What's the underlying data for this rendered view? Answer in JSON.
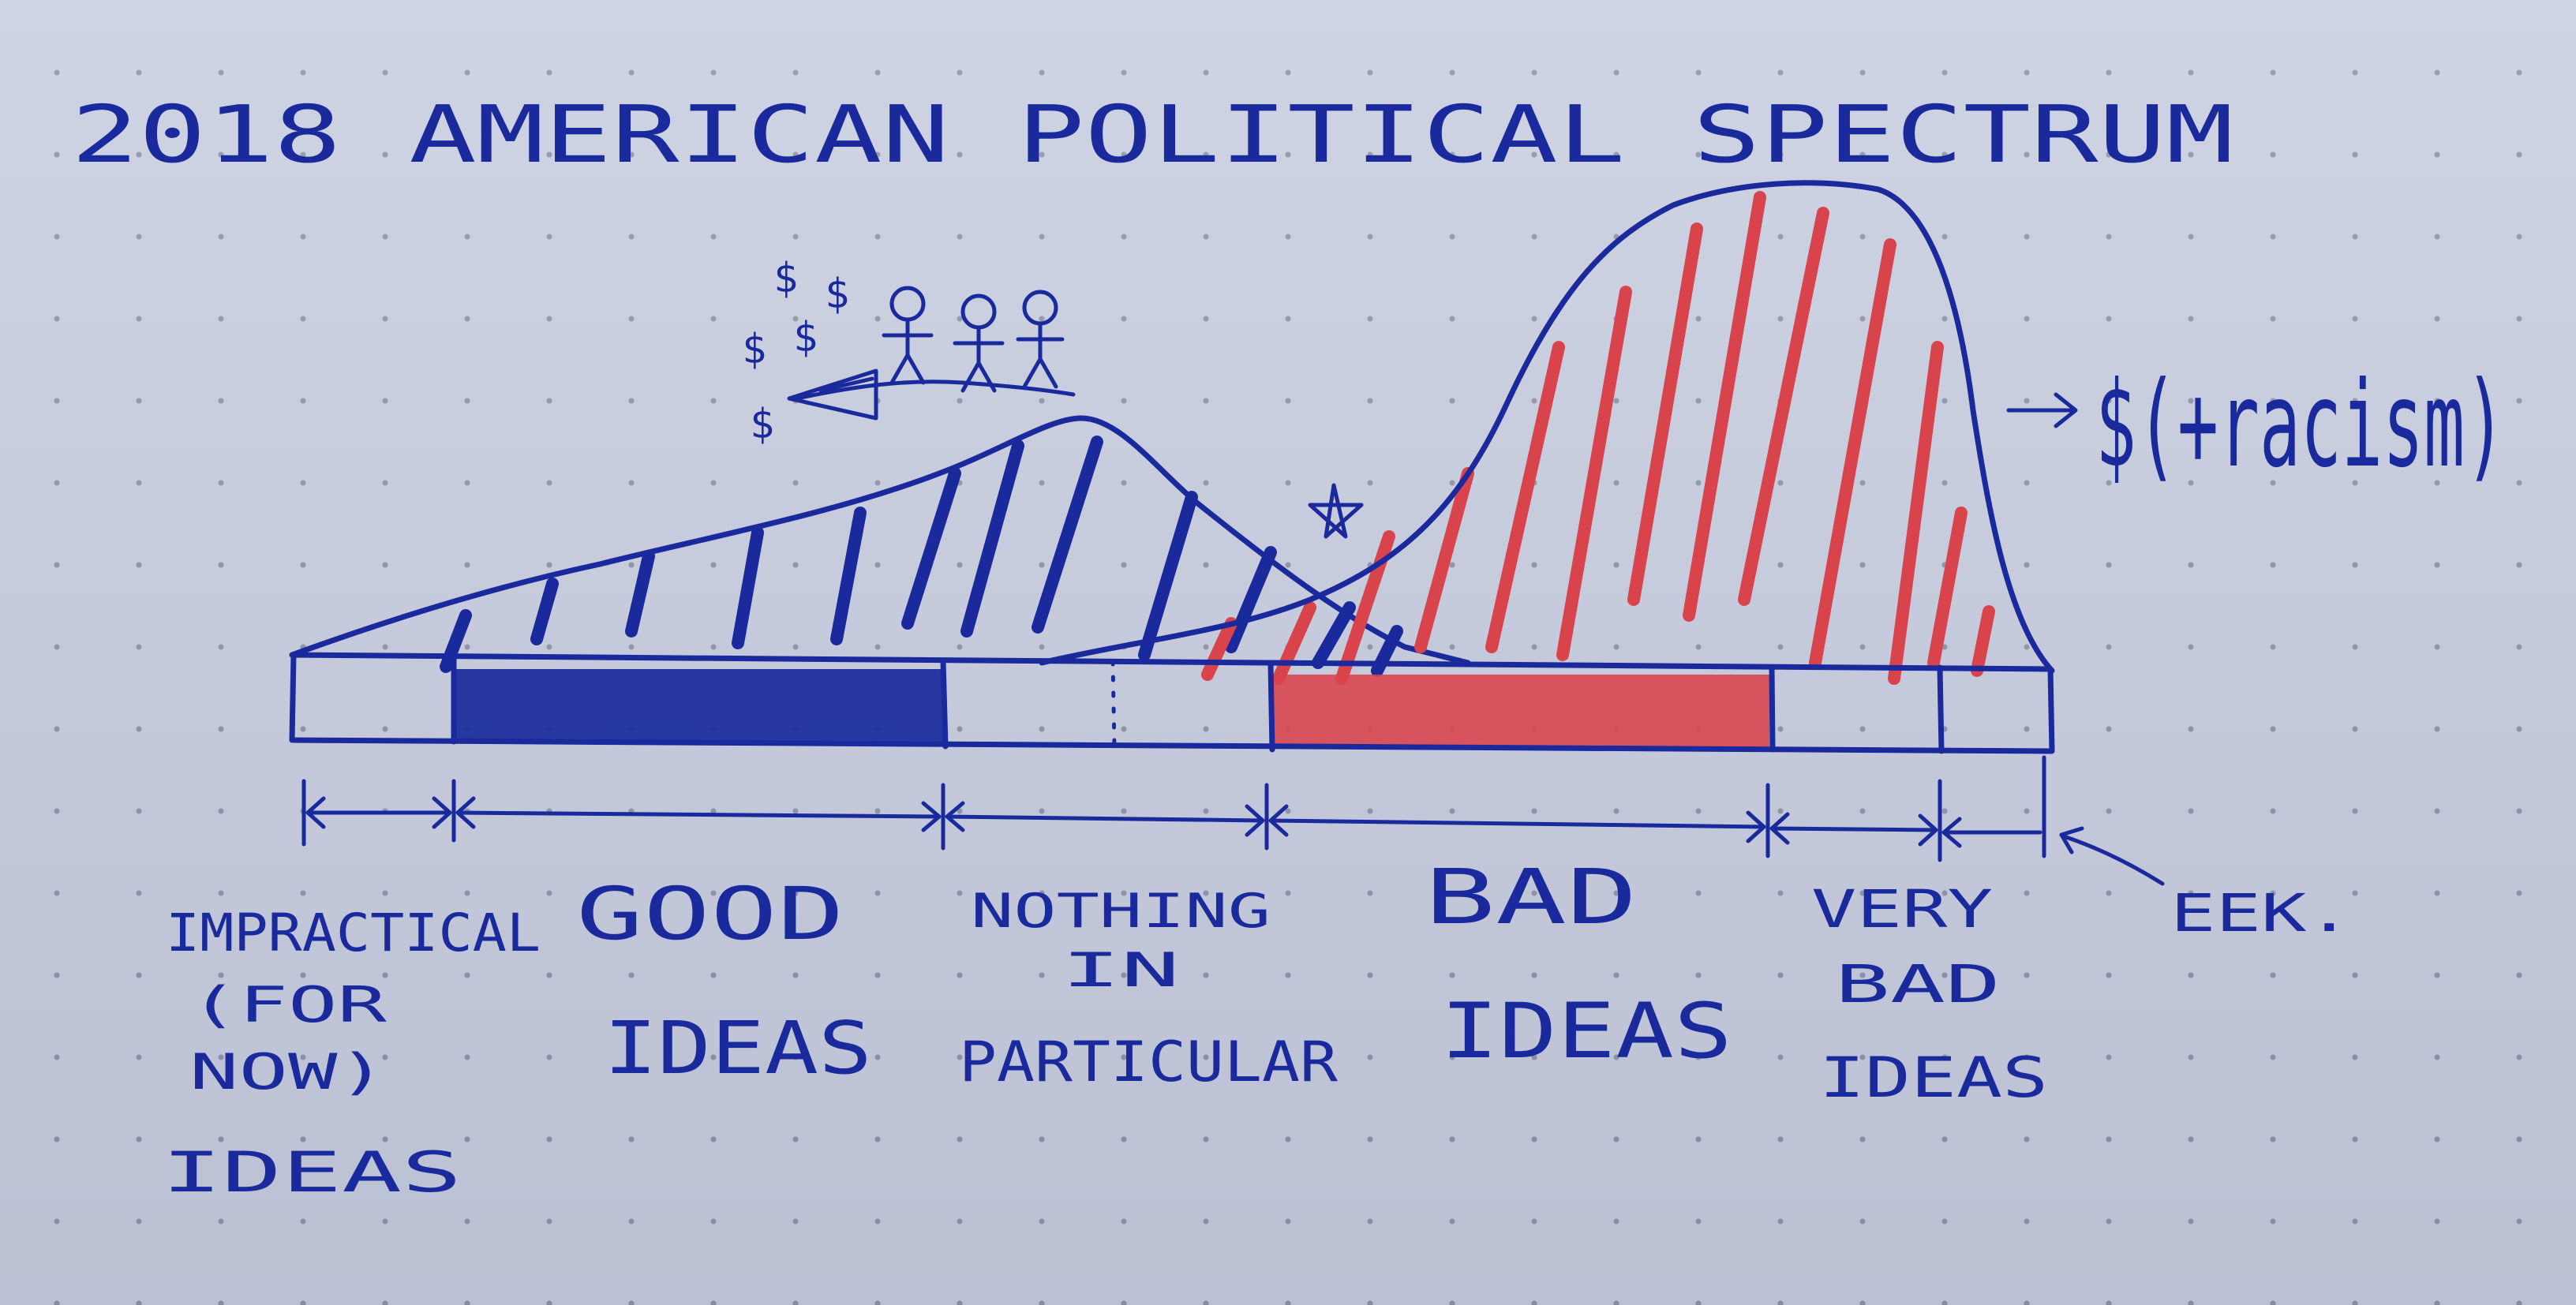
{
  "title": "2018 AMERICAN POLITICAL SPECTRUM",
  "annotations": {
    "money_note": "$(+racism)",
    "small_dollar": "$"
  },
  "segments": [
    {
      "id": "impractical",
      "lines": [
        "IMPRACTICAL",
        "(FOR",
        "NOW)",
        "IDEAS"
      ]
    },
    {
      "id": "good",
      "lines": [
        "GOOD",
        "IDEAS"
      ]
    },
    {
      "id": "nothing",
      "lines": [
        "NOTHING",
        "IN",
        "PARTICULAR"
      ]
    },
    {
      "id": "bad",
      "lines": [
        "BAD",
        "IDEAS"
      ]
    },
    {
      "id": "very-bad",
      "lines": [
        "VERY",
        "BAD",
        "IDEAS"
      ]
    },
    {
      "id": "eek",
      "lines": [
        "EEK."
      ]
    }
  ],
  "colors": {
    "ink": "#1a2a9c",
    "red": "#d9434c",
    "paper": "#c9cfe0"
  }
}
